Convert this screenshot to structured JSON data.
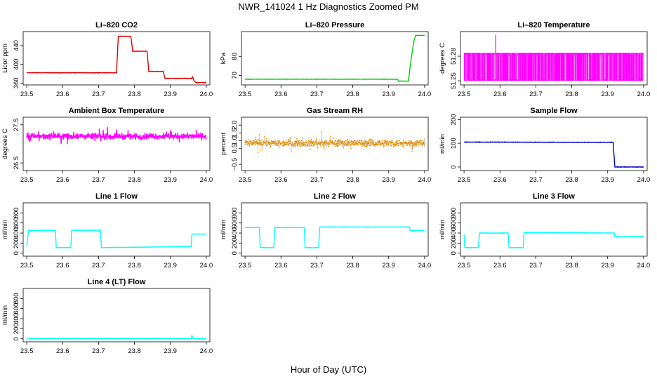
{
  "figure": {
    "title": "NWR_141024  1 Hz Diagnostics Zoomed PM",
    "xlabel": "Hour of Day (UTC)"
  },
  "chart_data": [
    {
      "type": "line",
      "title": "Li–820 CO2",
      "ylabel": "Licor ppm",
      "color": "#e00000",
      "xlim": [
        23.49,
        24.01
      ],
      "ylim": [
        356,
        470
      ],
      "xticks": [
        23.5,
        23.6,
        23.7,
        23.8,
        23.9,
        24.0
      ],
      "yticks": [
        360,
        400,
        440
      ],
      "ytick_labels": [
        "360",
        "400",
        "440"
      ],
      "noise": 0.6,
      "series": [
        {
          "x": [
            23.5,
            23.75,
            23.755,
            23.79,
            23.795,
            23.835,
            23.84,
            23.88,
            23.885,
            23.96,
            23.962,
            23.965,
            23.97,
            24.0
          ],
          "y": [
            382,
            382,
            460,
            460,
            428,
            428,
            385,
            385,
            370,
            370,
            374,
            366,
            361,
            361
          ]
        }
      ]
    },
    {
      "type": "line",
      "title": "Li–820 Pressure",
      "ylabel": "kPa",
      "color": "#00cc00",
      "xlim": [
        23.49,
        24.01
      ],
      "ylim": [
        65,
        93
      ],
      "xticks": [
        23.5,
        23.6,
        23.7,
        23.8,
        23.9,
        24.0
      ],
      "yticks": [
        70,
        80
      ],
      "ytick_labels": [
        "70",
        "80"
      ],
      "noise": 0.1,
      "series": [
        {
          "x": [
            23.5,
            23.925,
            23.927,
            23.955,
            23.96,
            23.97,
            23.975,
            24.0
          ],
          "y": [
            68,
            68,
            67,
            67,
            75,
            88,
            91,
            91
          ]
        }
      ]
    },
    {
      "type": "line",
      "title": "Li–820 Temperature",
      "ylabel": "degrees C",
      "color": "#ff00ff",
      "xlim": [
        23.49,
        24.01
      ],
      "ylim": [
        51.245,
        51.31
      ],
      "xticks": [
        23.5,
        23.6,
        23.7,
        23.8,
        23.9,
        24.0
      ],
      "yticks": [
        51.25,
        51.28
      ],
      "ytick_labels": [
        "51.25",
        "51.28"
      ],
      "band": {
        "x0": 23.5,
        "x1": 24.0,
        "low": 51.25,
        "high": 51.284
      },
      "spike": {
        "x": 23.588,
        "y": 51.306
      }
    },
    {
      "type": "line",
      "title": "Ambient Box Temperature",
      "ylabel": "degrees C",
      "color": "#ff00ff",
      "xlim": [
        23.49,
        24.01
      ],
      "ylim": [
        26.3,
        27.7
      ],
      "xticks": [
        23.5,
        23.6,
        23.7,
        23.8,
        23.9,
        24.0
      ],
      "yticks": [
        26.5,
        27.5
      ],
      "ytick_labels": [
        "26.5",
        "27.5"
      ],
      "noise": 0.12,
      "spikes": true,
      "series": [
        {
          "x": [
            23.5,
            24.0
          ],
          "y": [
            27.2,
            27.2
          ]
        }
      ]
    },
    {
      "type": "scatter",
      "title": "Gas Stream RH",
      "ylabel": "percent",
      "color": "#ff9900",
      "xlim": [
        23.49,
        24.01
      ],
      "ylim": [
        -0.9,
        2.5
      ],
      "xticks": [
        23.5,
        23.6,
        23.7,
        23.8,
        23.9,
        24.0
      ],
      "yticks": [
        -0.5,
        0.5,
        1.0,
        1.5,
        2.0
      ],
      "ytick_labels": [
        "−0.5",
        "0.5",
        "1.0",
        "1.5",
        "2.0"
      ],
      "noise": 0.33,
      "spikes": true,
      "series": [
        {
          "x": [
            23.5,
            24.0
          ],
          "y": [
            0.85,
            0.85
          ]
        }
      ]
    },
    {
      "type": "line",
      "title": "Sample Flow",
      "ylabel": "ml/min",
      "color": "#0000cc",
      "xlim": [
        23.49,
        24.01
      ],
      "ylim": [
        -15,
        210
      ],
      "xticks": [
        23.5,
        23.6,
        23.7,
        23.8,
        23.9,
        24.0
      ],
      "yticks": [
        0,
        100,
        200
      ],
      "ytick_labels": [
        "0",
        "100",
        "200"
      ],
      "noise": 1.2,
      "series": [
        {
          "x": [
            23.5,
            23.915,
            23.92,
            23.93,
            24.0
          ],
          "y": [
            105,
            104,
            0,
            0,
            0
          ]
        }
      ]
    },
    {
      "type": "line",
      "title": "Line 1 Flow",
      "ylabel": "ml/min",
      "color": "#00ffff",
      "xlim": [
        23.49,
        24.01
      ],
      "ylim": [
        -60,
        1000
      ],
      "xticks": [
        23.5,
        23.6,
        23.7,
        23.8,
        23.9,
        24.0
      ],
      "yticks": [
        0,
        200,
        400,
        600,
        800
      ],
      "ytick_labels": [
        "0",
        "200",
        "400",
        "600",
        "800"
      ],
      "noise": 5,
      "series": [
        {
          "x": [
            23.5,
            23.505,
            23.58,
            23.582,
            23.623,
            23.625,
            23.705,
            23.708,
            23.958,
            23.96,
            24.0
          ],
          "y": [
            140,
            450,
            450,
            110,
            110,
            455,
            455,
            110,
            130,
            380,
            380
          ]
        }
      ]
    },
    {
      "type": "line",
      "title": "Line 2 Flow",
      "ylabel": "ml/min",
      "color": "#00ffff",
      "xlim": [
        23.49,
        24.01
      ],
      "ylim": [
        -60,
        1000
      ],
      "xticks": [
        23.5,
        23.6,
        23.7,
        23.8,
        23.9,
        24.0
      ],
      "yticks": [
        0,
        200,
        400,
        600,
        800
      ],
      "ytick_labels": [
        "0",
        "200",
        "400",
        "600",
        "800"
      ],
      "noise": 5,
      "series": [
        {
          "x": [
            23.5,
            23.54,
            23.542,
            23.58,
            23.583,
            23.665,
            23.667,
            23.705,
            23.708,
            23.958,
            23.96,
            24.0
          ],
          "y": [
            510,
            510,
            110,
            110,
            510,
            510,
            110,
            110,
            520,
            520,
            450,
            450
          ]
        }
      ]
    },
    {
      "type": "line",
      "title": "Line 3 Flow",
      "ylabel": "ml/min",
      "color": "#00ffff",
      "xlim": [
        23.49,
        24.01
      ],
      "ylim": [
        -60,
        1000
      ],
      "xticks": [
        23.5,
        23.6,
        23.7,
        23.8,
        23.9,
        24.0
      ],
      "yticks": [
        0,
        200,
        400,
        600,
        800
      ],
      "ytick_labels": [
        "0",
        "200",
        "400",
        "600",
        "800"
      ],
      "noise": 6,
      "series": [
        {
          "x": [
            23.5,
            23.502,
            23.54,
            23.543,
            23.623,
            23.625,
            23.665,
            23.667,
            23.918,
            23.92,
            24.0
          ],
          "y": [
            370,
            110,
            110,
            400,
            400,
            110,
            110,
            410,
            400,
            330,
            330
          ]
        }
      ]
    },
    {
      "type": "line",
      "title": "Line 4 (LT) Flow",
      "ylabel": "ml/min",
      "color": "#00ffff",
      "xlim": [
        23.49,
        24.01
      ],
      "ylim": [
        -60,
        1000
      ],
      "xticks": [
        23.5,
        23.6,
        23.7,
        23.8,
        23.9,
        24.0
      ],
      "yticks": [
        0,
        200,
        400,
        600,
        800
      ],
      "ytick_labels": [
        "0",
        "200",
        "400",
        "600",
        "800"
      ],
      "noise": 1,
      "series": [
        {
          "x": [
            23.5,
            23.958,
            23.96,
            23.962,
            24.0
          ],
          "y": [
            5,
            5,
            70,
            5,
            5
          ]
        }
      ]
    }
  ]
}
